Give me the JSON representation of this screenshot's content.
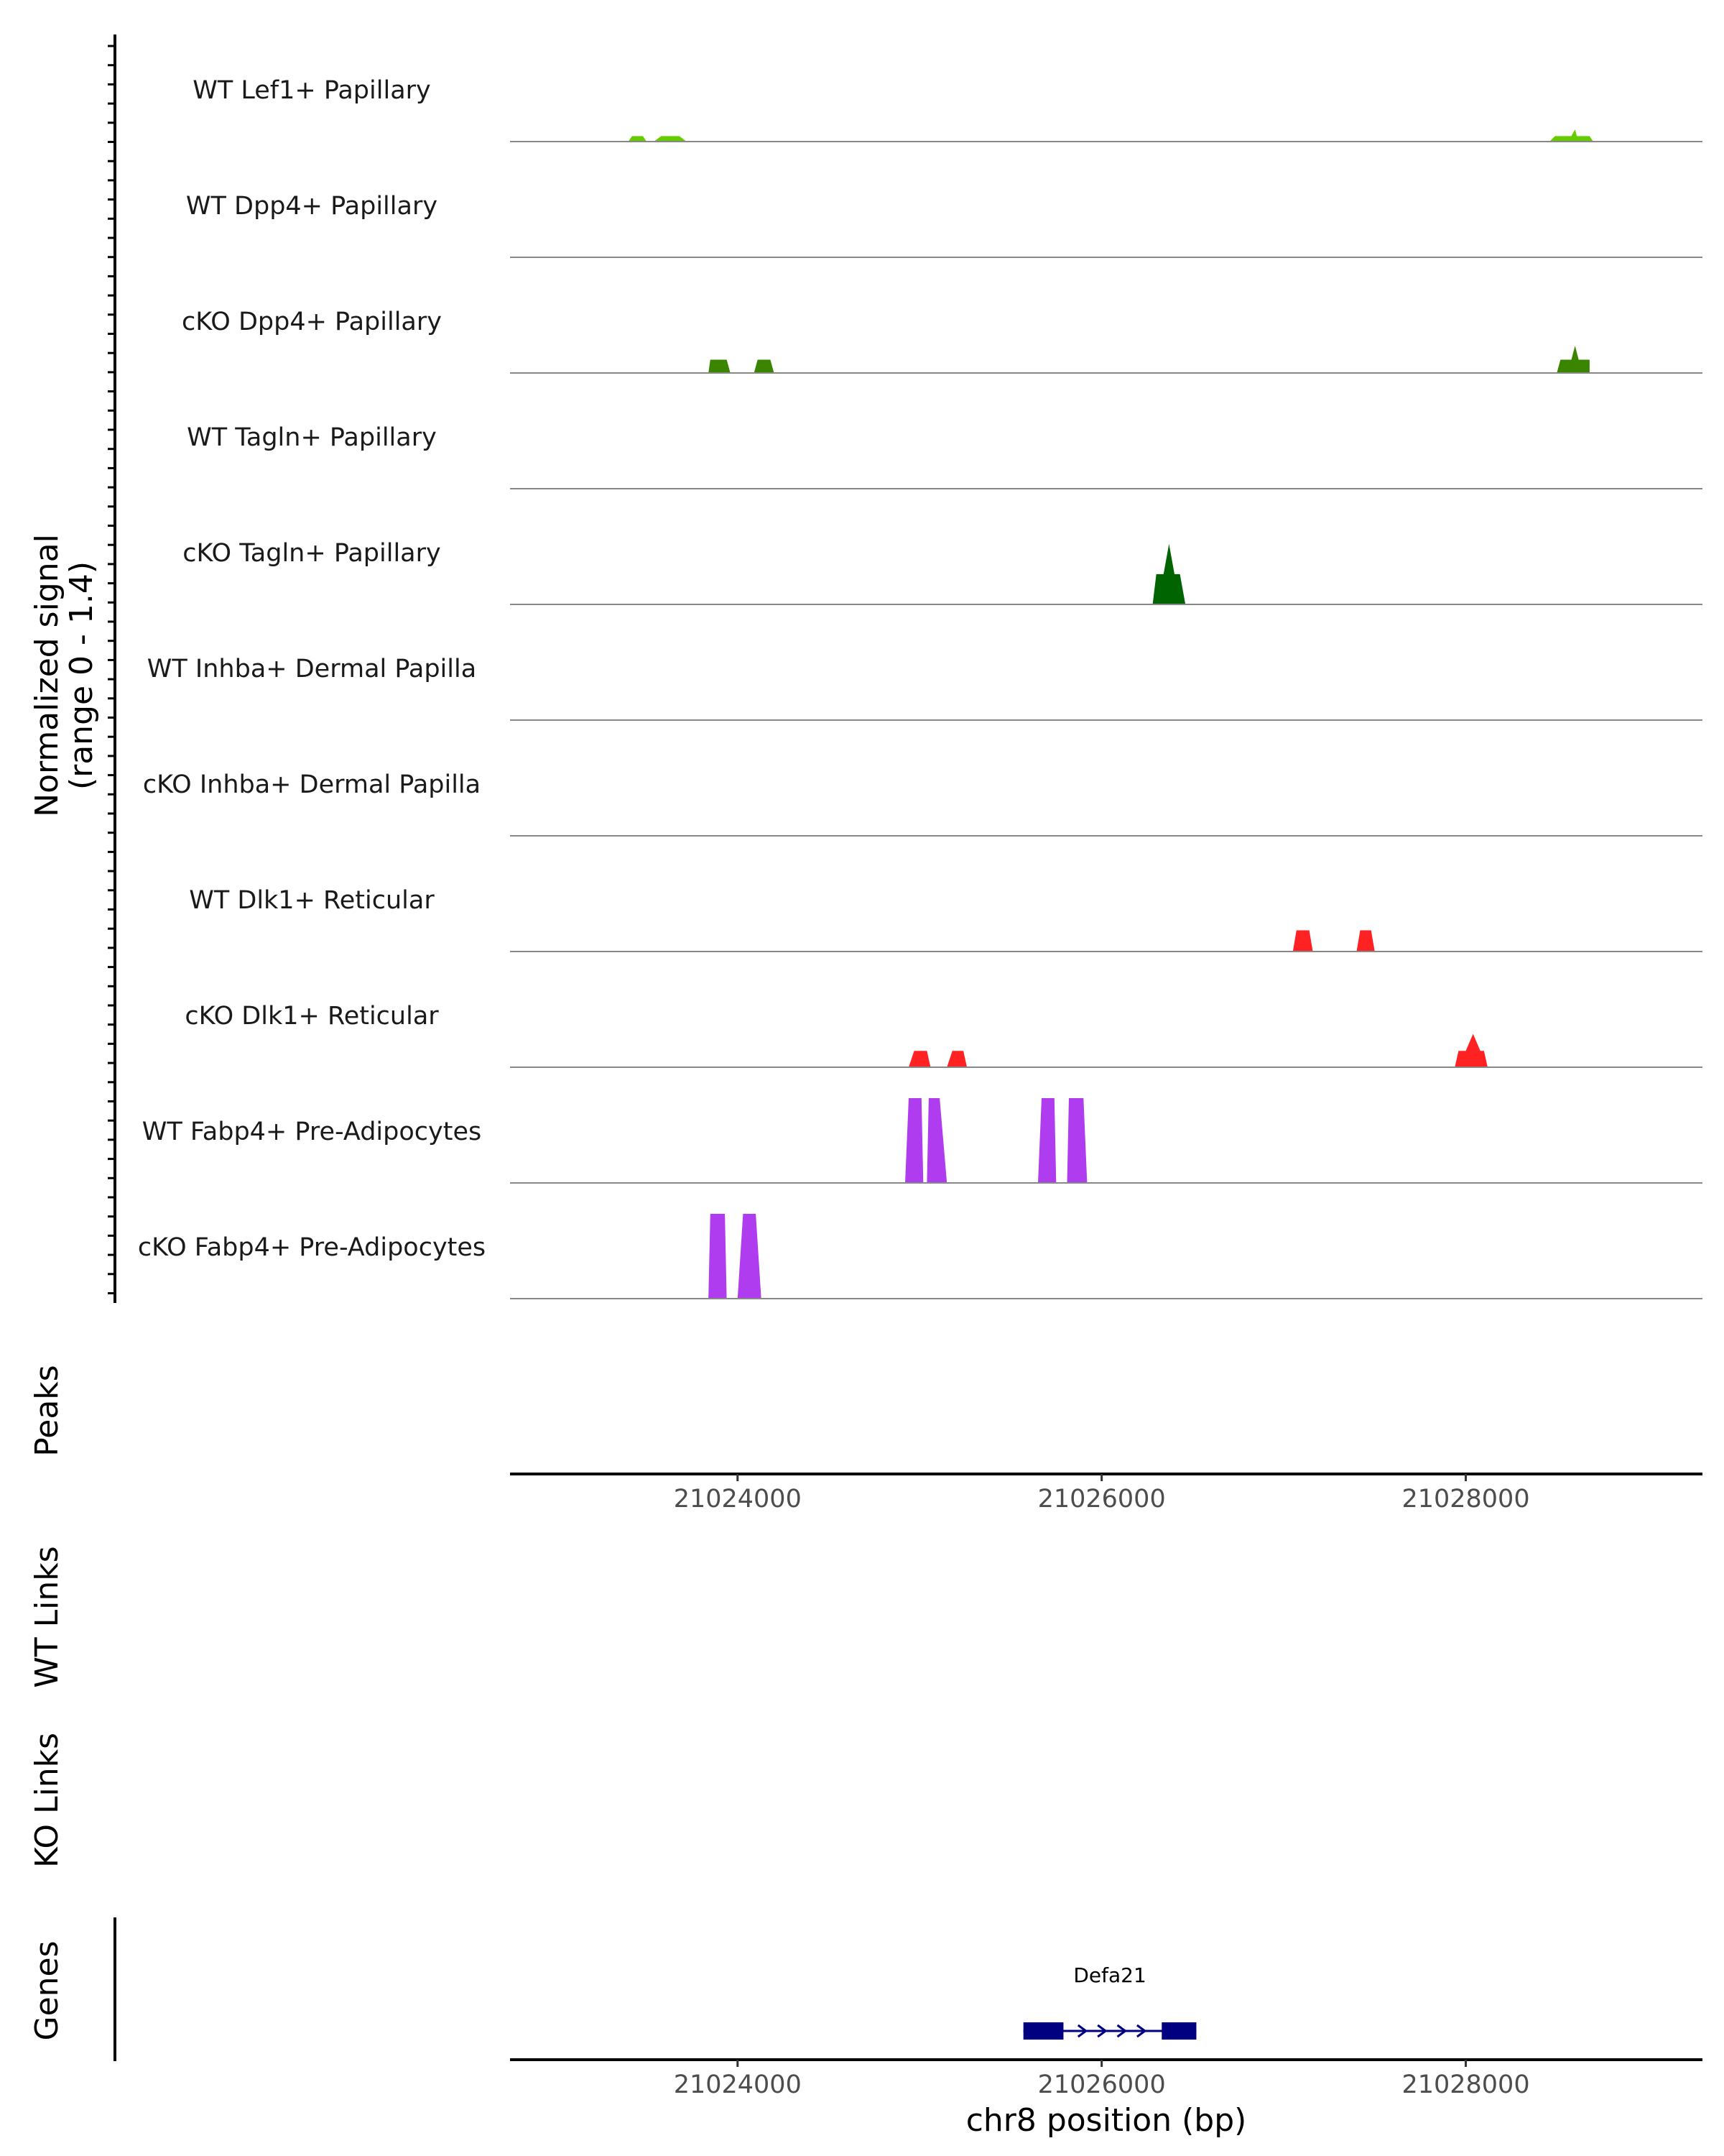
{
  "chart_data": {
    "type": "area",
    "title": "",
    "y_axis_title": "Normalized signal",
    "y_axis_subtitle": "(range 0 - 1.4)",
    "y_range": [
      0,
      1.4
    ],
    "xlabel": "chr8 position (bp)",
    "xlim": [
      21022750,
      21029300
    ],
    "xticks": [
      21024000,
      21026000,
      21028000
    ],
    "tick_labels": [
      "21024000",
      "21026000",
      "21028000"
    ],
    "tracks": [
      {
        "name": "WT Lef1+ Papillary",
        "color": "#66cc00",
        "segments": [
          {
            "x": [
              21023400,
              21023420,
              21023480,
              21023500
            ],
            "y": [
              0,
              0.09,
              0.09,
              0
            ]
          },
          {
            "x": [
              21023540,
              21023580,
              21023680,
              21023720
            ],
            "y": [
              0,
              0.09,
              0.09,
              0
            ]
          },
          {
            "x": [
              21028460,
              21028490,
              21028580,
              21028600,
              21028610,
              21028680,
              21028700
            ],
            "y": [
              0,
              0.09,
              0.09,
              0.2,
              0.09,
              0.09,
              0
            ]
          }
        ]
      },
      {
        "name": "WT Dpp4+ Papillary",
        "color": "#66cc00",
        "segments": []
      },
      {
        "name": "cKO Dpp4+ Papillary",
        "color": "#3a8500",
        "segments": [
          {
            "x": [
              21023840,
              21023850,
              21023940,
              21023960
            ],
            "y": [
              0,
              0.22,
              0.22,
              0
            ]
          },
          {
            "x": [
              21024090,
              21024110,
              21024180,
              21024200
            ],
            "y": [
              0,
              0.22,
              0.22,
              0
            ]
          },
          {
            "x": [
              21028500,
              21028520,
              21028580,
              21028600,
              21028620,
              21028680,
              21028680
            ],
            "y": [
              0,
              0.22,
              0.22,
              0.45,
              0.22,
              0.22,
              0
            ]
          }
        ]
      },
      {
        "name": "WT Tagln+ Papillary",
        "color": "#66cc00",
        "segments": []
      },
      {
        "name": "cKO Tagln+ Papillary",
        "color": "#006400",
        "segments": [
          {
            "x": [
              21026280,
              21026300,
              21026340,
              21026370,
              21026400,
              21026430,
              21026460
            ],
            "y": [
              0,
              0.5,
              0.5,
              1.0,
              0.5,
              0.5,
              0
            ]
          }
        ]
      },
      {
        "name": "WT Inhba+ Dermal Papilla",
        "color": "#ff2222",
        "segments": []
      },
      {
        "name": "cKO Inhba+ Dermal Papilla",
        "color": "#ff2222",
        "segments": []
      },
      {
        "name": "WT Dlk1+ Reticular",
        "color": "#ff2222",
        "segments": [
          {
            "x": [
              21027050,
              21027070,
              21027140,
              21027160
            ],
            "y": [
              0,
              0.35,
              0.35,
              0
            ]
          },
          {
            "x": [
              21027400,
              21027420,
              21027480,
              21027500
            ],
            "y": [
              0,
              0.35,
              0.35,
              0
            ]
          }
        ]
      },
      {
        "name": "cKO Dlk1+ Reticular",
        "color": "#ff2222",
        "segments": [
          {
            "x": [
              21024940,
              21024970,
              21025040,
              21025060
            ],
            "y": [
              0,
              0.27,
              0.27,
              0
            ]
          },
          {
            "x": [
              21025150,
              21025180,
              21025240,
              21025260
            ],
            "y": [
              0,
              0.27,
              0.27,
              0
            ]
          },
          {
            "x": [
              21027940,
              21027960,
              21028000,
              21028040,
              21028080,
              21028100,
              21028120
            ],
            "y": [
              0,
              0.27,
              0.27,
              0.55,
              0.27,
              0.27,
              0
            ]
          }
        ]
      },
      {
        "name": "WT Fabp4+ Pre-Adipocytes",
        "color": "#b03cf0",
        "segments": [
          {
            "x": [
              21024920,
              21024940,
              21025010,
              21025020
            ],
            "y": [
              0,
              1.4,
              1.4,
              0
            ]
          },
          {
            "x": [
              21025040,
              21025050,
              21025110,
              21025150
            ],
            "y": [
              0,
              1.4,
              1.4,
              0
            ]
          },
          {
            "x": [
              21025650,
              21025670,
              21025740,
              21025750
            ],
            "y": [
              0,
              1.4,
              1.4,
              0
            ]
          },
          {
            "x": [
              21025810,
              21025820,
              21025900,
              21025920
            ],
            "y": [
              0,
              1.4,
              1.4,
              0
            ]
          }
        ]
      },
      {
        "name": "cKO Fabp4+ Pre-Adipocytes",
        "color": "#b03cf0",
        "segments": [
          {
            "x": [
              21023840,
              21023850,
              21023930,
              21023940
            ],
            "y": [
              0,
              1.4,
              1.4,
              0
            ]
          },
          {
            "x": [
              21024000,
              21024030,
              21024100,
              21024130
            ],
            "y": [
              0,
              1.4,
              1.4,
              0
            ]
          }
        ]
      }
    ],
    "peaks_label": "Peaks",
    "wt_links_label": "WT Links",
    "ko_links_label": "KO Links",
    "genes_label": "Genes",
    "genes": [
      {
        "name": "Defa21",
        "start": 21025570,
        "end": 21026520,
        "strand": "+",
        "exons": [
          [
            21025570,
            21025790
          ],
          [
            21026330,
            21026520
          ]
        ],
        "color": "#000080"
      }
    ]
  }
}
